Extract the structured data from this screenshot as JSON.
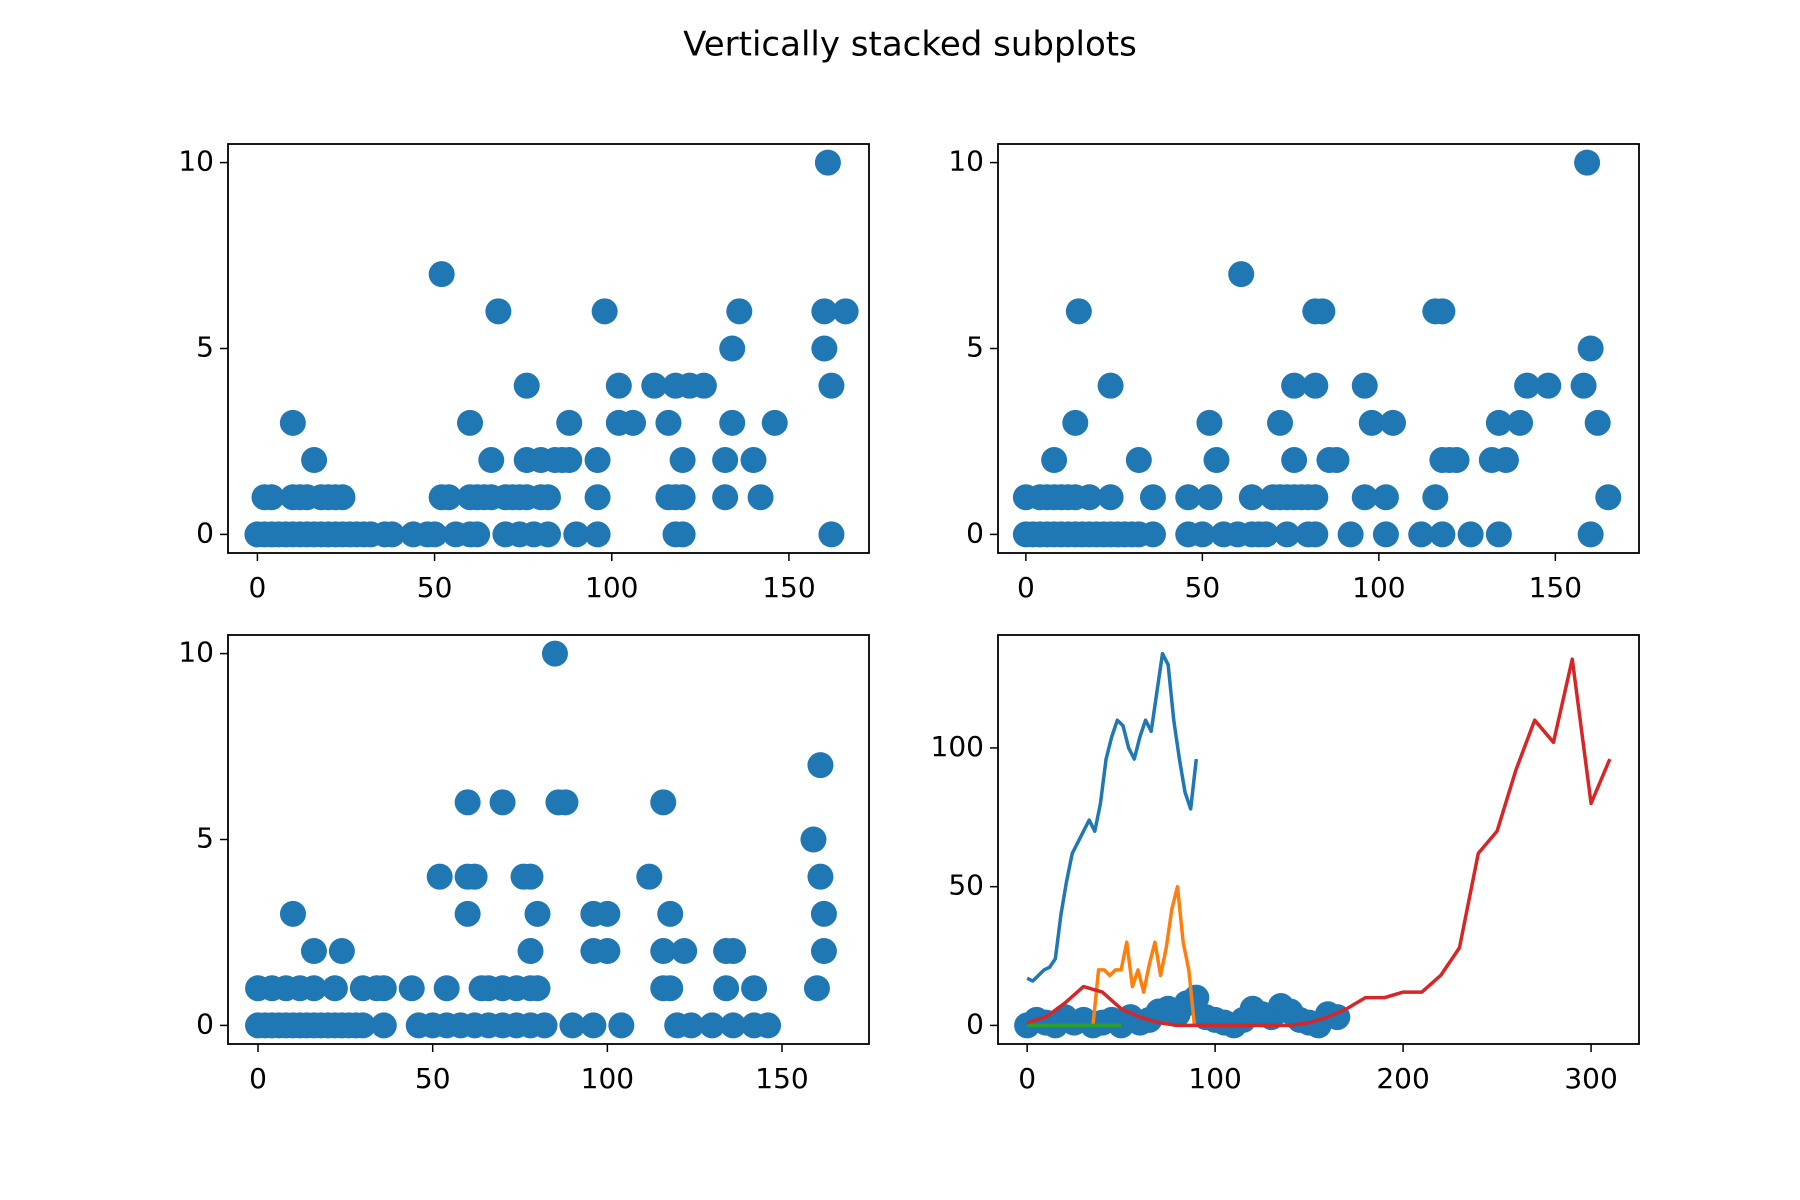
{
  "title": "Vertically stacked subplots",
  "chart_data": [
    {
      "type": "scatter",
      "color": "#1f77b4",
      "xlim": [
        -8.3,
        172.6
      ],
      "ylim": [
        -0.5,
        10.5
      ],
      "xticks": [
        0,
        50,
        100,
        150
      ],
      "yticks": [
        0,
        5,
        10
      ],
      "x": [
        0,
        2,
        4,
        6,
        8,
        10,
        12,
        14,
        16,
        18,
        20,
        22,
        24,
        26,
        28,
        30,
        32,
        36,
        38,
        44,
        48,
        50,
        56,
        60,
        62,
        70,
        74,
        78,
        82,
        90,
        96,
        118,
        120,
        162,
        2,
        4,
        10,
        12,
        14,
        18,
        20,
        22,
        24,
        52,
        54,
        60,
        62,
        64,
        66,
        70,
        72,
        74,
        76,
        80,
        82,
        96,
        116,
        118,
        120,
        132,
        142,
        16,
        66,
        76,
        80,
        84,
        86,
        88,
        96,
        120,
        132,
        140,
        10,
        60,
        88,
        102,
        106,
        116,
        134,
        146,
        76,
        102,
        112,
        118,
        122,
        126,
        162,
        134,
        160,
        68,
        98,
        136,
        160,
        166,
        52,
        161
      ],
      "values": [
        0,
        0,
        0,
        0,
        0,
        0,
        0,
        0,
        0,
        0,
        0,
        0,
        0,
        0,
        0,
        0,
        0,
        0,
        0,
        0,
        0,
        0,
        0,
        0,
        0,
        0,
        0,
        0,
        0,
        0,
        0,
        0,
        0,
        0,
        1,
        1,
        1,
        1,
        1,
        1,
        1,
        1,
        1,
        1,
        1,
        1,
        1,
        1,
        1,
        1,
        1,
        1,
        1,
        1,
        1,
        1,
        1,
        1,
        1,
        1,
        1,
        2,
        2,
        2,
        2,
        2,
        2,
        2,
        2,
        2,
        2,
        2,
        3,
        3,
        3,
        3,
        3,
        3,
        3,
        3,
        4,
        4,
        4,
        4,
        4,
        4,
        4,
        5,
        5,
        6,
        6,
        6,
        6,
        6,
        7,
        10
      ]
    },
    {
      "type": "scatter",
      "color": "#1f77b4",
      "xlim": [
        -7.9,
        173.7
      ],
      "ylim": [
        -0.5,
        10.5
      ],
      "xticks": [
        0,
        50,
        100,
        150
      ],
      "yticks": [
        0,
        5,
        10
      ],
      "x": [
        0,
        2,
        4,
        6,
        8,
        10,
        12,
        14,
        16,
        18,
        20,
        22,
        24,
        26,
        28,
        30,
        32,
        36,
        46,
        50,
        56,
        60,
        64,
        66,
        68,
        74,
        80,
        82,
        92,
        102,
        112,
        118,
        126,
        134,
        160,
        0,
        4,
        6,
        8,
        10,
        12,
        14,
        18,
        24,
        36,
        46,
        52,
        64,
        70,
        72,
        74,
        76,
        78,
        80,
        82,
        96,
        102,
        116,
        165,
        8,
        32,
        54,
        76,
        86,
        88,
        118,
        120,
        122,
        132,
        136,
        14,
        52,
        72,
        98,
        104,
        134,
        140,
        162,
        24,
        76,
        82,
        96,
        142,
        148,
        158,
        160,
        15,
        82,
        84,
        116,
        118,
        61,
        159
      ],
      "values": [
        0,
        0,
        0,
        0,
        0,
        0,
        0,
        0,
        0,
        0,
        0,
        0,
        0,
        0,
        0,
        0,
        0,
        0,
        0,
        0,
        0,
        0,
        0,
        0,
        0,
        0,
        0,
        0,
        0,
        0,
        0,
        0,
        0,
        0,
        0,
        1,
        1,
        1,
        1,
        1,
        1,
        1,
        1,
        1,
        1,
        1,
        1,
        1,
        1,
        1,
        1,
        1,
        1,
        1,
        1,
        1,
        1,
        1,
        1,
        2,
        2,
        2,
        2,
        2,
        2,
        2,
        2,
        2,
        2,
        2,
        3,
        3,
        3,
        3,
        3,
        3,
        3,
        3,
        4,
        4,
        4,
        4,
        4,
        4,
        4,
        5,
        6,
        6,
        6,
        6,
        6,
        7,
        10
      ]
    },
    {
      "type": "scatter",
      "color": "#1f77b4",
      "xlim": [
        -8.6,
        174.9
      ],
      "ylim": [
        -0.5,
        10.5
      ],
      "xticks": [
        0,
        50,
        100,
        150
      ],
      "yticks": [
        0,
        5,
        10
      ],
      "x": [
        0,
        2,
        4,
        6,
        8,
        10,
        12,
        14,
        16,
        18,
        20,
        22,
        24,
        26,
        28,
        30,
        36,
        46,
        50,
        54,
        58,
        62,
        66,
        70,
        74,
        78,
        82,
        90,
        96,
        104,
        120,
        124,
        130,
        136,
        142,
        146,
        0,
        4,
        8,
        12,
        16,
        22,
        30,
        34,
        36,
        44,
        54,
        64,
        66,
        70,
        74,
        78,
        80,
        116,
        118,
        134,
        142,
        160,
        16,
        24,
        78,
        96,
        100,
        116,
        122,
        134,
        136,
        162,
        10,
        60,
        80,
        96,
        100,
        118,
        162,
        52,
        60,
        62,
        76,
        78,
        112,
        161,
        159,
        60,
        70,
        86,
        88,
        116,
        161,
        85
      ],
      "values": [
        0,
        0,
        0,
        0,
        0,
        0,
        0,
        0,
        0,
        0,
        0,
        0,
        0,
        0,
        0,
        0,
        0,
        0,
        0,
        0,
        0,
        0,
        0,
        0,
        0,
        0,
        0,
        0,
        0,
        0,
        0,
        0,
        0,
        0,
        0,
        0,
        1,
        1,
        1,
        1,
        1,
        1,
        1,
        1,
        1,
        1,
        1,
        1,
        1,
        1,
        1,
        1,
        1,
        1,
        1,
        1,
        1,
        1,
        2,
        2,
        2,
        2,
        2,
        2,
        2,
        2,
        2,
        2,
        3,
        3,
        3,
        3,
        3,
        3,
        3,
        4,
        4,
        4,
        4,
        4,
        4,
        4,
        5,
        6,
        6,
        6,
        6,
        6,
        7,
        10
      ]
    },
    {
      "type": "line",
      "xlim": [
        -15.5,
        325.5
      ],
      "ylim": [
        -6.7,
        140.7
      ],
      "xticks": [
        0,
        100,
        200,
        300
      ],
      "yticks": [
        0,
        50,
        100
      ],
      "series": [
        {
          "type": "scatter",
          "color": "#1f77b4",
          "x": [
            0,
            5,
            10,
            15,
            20,
            25,
            30,
            35,
            40,
            45,
            50,
            55,
            60,
            65,
            70,
            75,
            80,
            85,
            90,
            95,
            100,
            105,
            110,
            115,
            120,
            125,
            130,
            135,
            140,
            145,
            150,
            155,
            160,
            165
          ],
          "values": [
            0,
            2,
            1,
            0,
            3,
            1,
            2,
            0,
            1,
            2,
            0,
            3,
            1,
            2,
            5,
            6,
            4,
            8,
            10,
            3,
            2,
            1,
            0,
            2,
            6,
            4,
            3,
            7,
            5,
            2,
            1,
            0,
            4,
            3
          ]
        },
        {
          "color": "#1f77b4",
          "x": [
            0,
            3,
            6,
            9,
            12,
            15,
            18,
            21,
            24,
            27,
            30,
            33,
            36,
            39,
            42,
            45,
            48,
            51,
            54,
            57,
            60,
            63,
            66,
            69,
            72,
            75,
            78,
            81,
            84,
            87,
            90
          ],
          "values": [
            17,
            16,
            18,
            20,
            21,
            24,
            40,
            52,
            62,
            66,
            70,
            74,
            70,
            80,
            96,
            104,
            110,
            108,
            100,
            96,
            104,
            110,
            106,
            120,
            134,
            130,
            110,
            96,
            84,
            78,
            96
          ]
        },
        {
          "color": "#ff7f0e",
          "x": [
            35,
            38,
            41,
            44,
            47,
            50,
            53,
            56,
            59,
            62,
            65,
            68,
            71,
            74,
            77,
            80,
            83,
            86,
            89
          ],
          "values": [
            0,
            20,
            20,
            18,
            20,
            20,
            30,
            14,
            20,
            12,
            22,
            30,
            18,
            28,
            42,
            50,
            30,
            20,
            0
          ]
        },
        {
          "color": "#2ca02c",
          "x": [
            0,
            10,
            20,
            30,
            40,
            50
          ],
          "values": [
            0,
            0,
            0,
            0,
            0,
            0
          ]
        },
        {
          "color": "#d62728",
          "x": [
            0,
            10,
            20,
            30,
            40,
            50,
            60,
            70,
            80,
            90,
            100,
            110,
            120,
            130,
            140,
            150,
            160,
            170,
            180,
            190,
            200,
            210,
            220,
            230,
            240,
            250,
            260,
            270,
            280,
            290,
            300,
            310
          ],
          "values": [
            1,
            3,
            8,
            14,
            12,
            6,
            3,
            1,
            0,
            0,
            0,
            0,
            0,
            0,
            0,
            1,
            3,
            6,
            10,
            10,
            12,
            12,
            18,
            28,
            62,
            70,
            92,
            110,
            102,
            132,
            80,
            96
          ]
        }
      ]
    }
  ]
}
